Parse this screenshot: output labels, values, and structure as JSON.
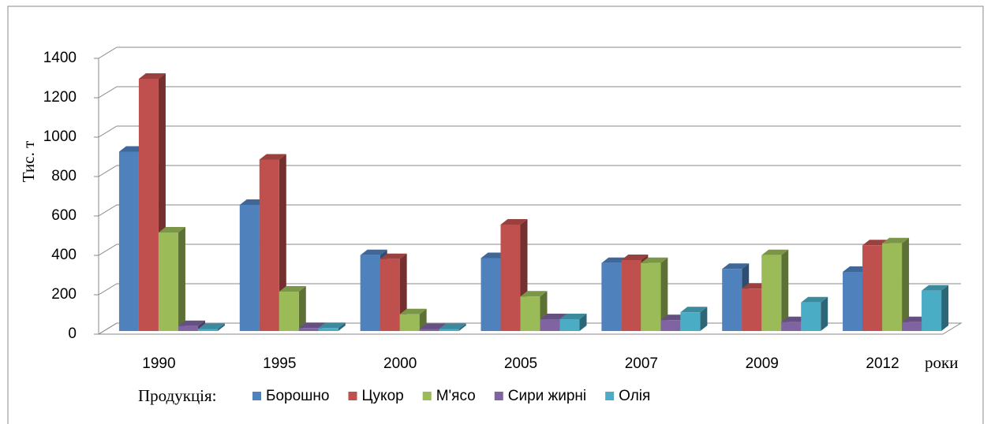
{
  "chart_data": {
    "type": "bar3d",
    "y_label": "Тис. т",
    "x_label": "роки",
    "legend_title": "Продукція:",
    "categories": [
      "1990",
      "1995",
      "2000",
      "2005",
      "2007",
      "2009",
      "2012"
    ],
    "series": [
      {
        "name": "Борошно",
        "color": "#4f81bd",
        "values": [
          910,
          640,
          385,
          370,
          345,
          315,
          300
        ]
      },
      {
        "name": "Цукор",
        "color": "#c0504d",
        "values": [
          1280,
          870,
          365,
          540,
          360,
          215,
          435
        ]
      },
      {
        "name": "М'ясо",
        "color": "#9bbb59",
        "values": [
          500,
          200,
          85,
          175,
          345,
          385,
          445
        ]
      },
      {
        "name": "Сири жирні",
        "color": "#8064a2",
        "values": [
          25,
          15,
          10,
          60,
          55,
          45,
          45
        ]
      },
      {
        "name": "Олія",
        "color": "#4bacc6",
        "values": [
          10,
          15,
          10,
          60,
          95,
          145,
          205
        ]
      }
    ],
    "ylim": [
      0,
      1400
    ],
    "yticks": [
      0,
      200,
      400,
      600,
      800,
      1000,
      1200,
      1400
    ],
    "grid": true
  }
}
